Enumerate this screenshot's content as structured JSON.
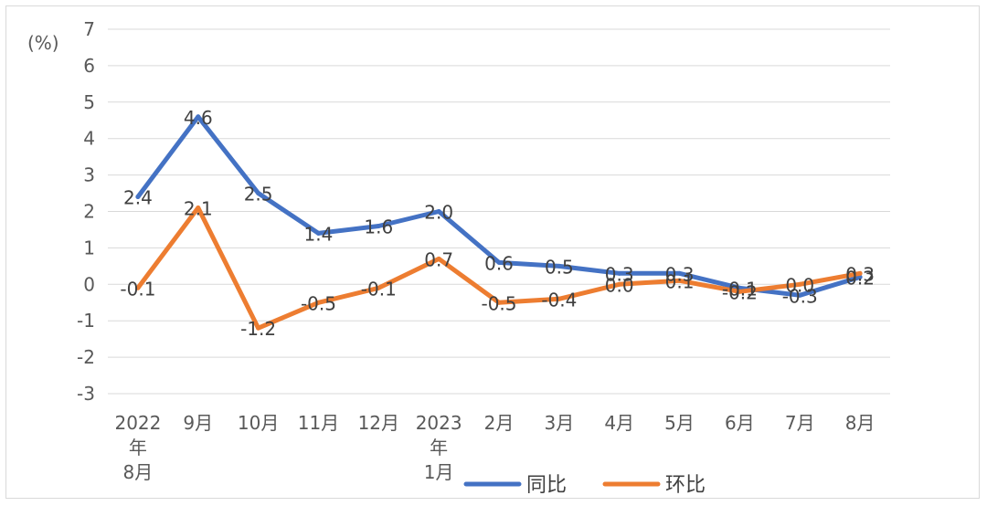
{
  "chart_data": {
    "type": "line",
    "unit_label": "(%)",
    "categories": [
      [
        "2022",
        "年",
        "8月"
      ],
      [
        "9月"
      ],
      [
        "10月"
      ],
      [
        "11月"
      ],
      [
        "12月"
      ],
      [
        "2023",
        "年",
        "1月"
      ],
      [
        "2月"
      ],
      [
        "3月"
      ],
      [
        "4月"
      ],
      [
        "5月"
      ],
      [
        "6月"
      ],
      [
        "7月"
      ],
      [
        "8月"
      ]
    ],
    "ylim": [
      -3,
      7
    ],
    "yticks": [
      -3,
      -2,
      -1,
      0,
      1,
      2,
      3,
      4,
      5,
      6,
      7
    ],
    "grid": true,
    "legend_position": "bottom",
    "series": [
      {
        "name": "同比",
        "color": "#4472c4",
        "values": [
          2.4,
          4.6,
          2.5,
          1.4,
          1.6,
          2.0,
          0.6,
          0.5,
          0.3,
          0.3,
          -0.1,
          -0.3,
          0.2
        ],
        "labels": [
          "2.4",
          "4.6",
          "2.5",
          "1.4",
          "1.6",
          "2.0",
          "0.6",
          "0.5",
          "0.3",
          "0.3",
          "-0.1",
          "-0.3",
          "0.2"
        ]
      },
      {
        "name": "环比",
        "color": "#ed7d31",
        "values": [
          -0.1,
          2.1,
          -1.2,
          -0.5,
          -0.1,
          0.7,
          -0.5,
          -0.4,
          0.0,
          0.1,
          -0.2,
          0.0,
          0.3
        ],
        "labels": [
          "-0.1",
          "2.1",
          "-1.2",
          "-0.5",
          "-0.1",
          "0.7",
          "-0.5",
          "-0.4",
          "0.0",
          "0.1",
          "-0.2",
          "0.0",
          "0.3"
        ]
      }
    ]
  }
}
